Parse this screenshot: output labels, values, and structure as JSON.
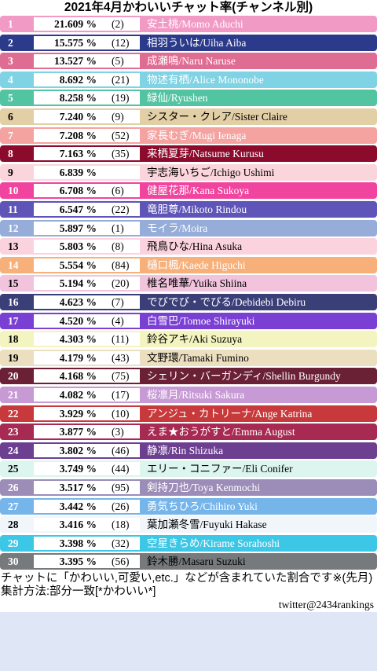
{
  "title": "2021年4月かわいいチャット率(チャンネル別)",
  "chart_data": {
    "type": "table",
    "title": "2021年4月かわいいチャット率(チャンネル別)",
    "columns": [
      "rank",
      "percent",
      "count",
      "channel"
    ],
    "rows": [
      {
        "rank": "1",
        "pct": "21.609 %",
        "count": "(2)",
        "name": "安土桃/Momo Aduchi",
        "bg": "#f29ac6",
        "fg": "#ffffff",
        "nameColor": "#ffffff"
      },
      {
        "rank": "2",
        "pct": "15.575 %",
        "count": "(12)",
        "name": "相羽ういは/Uiha Aiba",
        "bg": "#2b3a8a",
        "fg": "#ffffff",
        "nameColor": "#ffffff"
      },
      {
        "rank": "3",
        "pct": "13.527 %",
        "count": "(5)",
        "name": "成瀬鳴/Naru Naruse",
        "bg": "#df6d93",
        "fg": "#ffffff",
        "nameColor": "#ffffff"
      },
      {
        "rank": "4",
        "pct": "8.692 %",
        "count": "(21)",
        "name": "物述有栖/Alice Mononobe",
        "bg": "#7fd3e4",
        "fg": "#ffffff",
        "nameColor": "#ffffff"
      },
      {
        "rank": "5",
        "pct": "8.258 %",
        "count": "(19)",
        "name": "緑仙/Ryushen",
        "bg": "#52c4a1",
        "fg": "#ffffff",
        "nameColor": "#ffffff"
      },
      {
        "rank": "6",
        "pct": "7.240 %",
        "count": "(9)",
        "name": "シスター・クレア/Sister Claire",
        "bg": "#e3cfa6",
        "fg": "#000000",
        "nameColor": "#000000"
      },
      {
        "rank": "7",
        "pct": "7.208 %",
        "count": "(52)",
        "name": "家長むぎ/Mugi Ienaga",
        "bg": "#f4a3a1",
        "fg": "#ffffff",
        "nameColor": "#ffffff"
      },
      {
        "rank": "8",
        "pct": "7.163 %",
        "count": "(35)",
        "name": "来栖夏芽/Natsume Kurusu",
        "bg": "#8c0b2c",
        "fg": "#ffffff",
        "nameColor": "#ffffff"
      },
      {
        "rank": "9",
        "pct": "6.839 %",
        "count": "",
        "name": "宇志海いちご/Ichigo Ushimi",
        "bg": "#fbd5dc",
        "fg": "#000000",
        "nameColor": "#000000"
      },
      {
        "rank": "10",
        "pct": "6.708 %",
        "count": "(6)",
        "name": "健屋花那/Kana Sukoya",
        "bg": "#f1449e",
        "fg": "#ffffff",
        "nameColor": "#ffffff"
      },
      {
        "rank": "11",
        "pct": "6.547 %",
        "count": "(22)",
        "name": "竜胆尊/Mikoto Rindou",
        "bg": "#5f54b8",
        "fg": "#ffffff",
        "nameColor": "#ffffff"
      },
      {
        "rank": "12",
        "pct": "5.897 %",
        "count": "(1)",
        "name": "モイラ/Moira",
        "bg": "#96acd9",
        "fg": "#ffffff",
        "nameColor": "#ffffff"
      },
      {
        "rank": "13",
        "pct": "5.803 %",
        "count": "(8)",
        "name": "飛鳥ひな/Hina Asuka",
        "bg": "#fbd3de",
        "fg": "#000000",
        "nameColor": "#000000"
      },
      {
        "rank": "14",
        "pct": "5.554 %",
        "count": "(84)",
        "name": "樋口楓/Kaede Higuchi",
        "bg": "#f7b07a",
        "fg": "#ffffff",
        "nameColor": "#ffffff"
      },
      {
        "rank": "15",
        "pct": "5.194 %",
        "count": "(20)",
        "name": "椎名唯華/Yuika Shiina",
        "bg": "#f1c3dd",
        "fg": "#000000",
        "nameColor": "#000000"
      },
      {
        "rank": "16",
        "pct": "4.623 %",
        "count": "(7)",
        "name": "でびでび・でびる/Debidebi Debiru",
        "bg": "#3b3f78",
        "fg": "#ffffff",
        "nameColor": "#ffffff"
      },
      {
        "rank": "17",
        "pct": "4.520 %",
        "count": "(4)",
        "name": "白雪巴/Tomoe Shirayuki",
        "bg": "#7a3fd3",
        "fg": "#ffffff",
        "nameColor": "#ffffff"
      },
      {
        "rank": "18",
        "pct": "4.303 %",
        "count": "(11)",
        "name": "鈴谷アキ/Aki Suzuya",
        "bg": "#f4f4c0",
        "fg": "#000000",
        "nameColor": "#000000"
      },
      {
        "rank": "19",
        "pct": "4.179 %",
        "count": "(43)",
        "name": "文野環/Tamaki Fumino",
        "bg": "#ecdfc0",
        "fg": "#000000",
        "nameColor": "#000000"
      },
      {
        "rank": "20",
        "pct": "4.168 %",
        "count": "(75)",
        "name": "シェリン・バーガンディ/Shellin Burgundy",
        "bg": "#6a2035",
        "fg": "#ffffff",
        "nameColor": "#ffffff"
      },
      {
        "rank": "21",
        "pct": "4.082 %",
        "count": "(17)",
        "name": "桜凛月/Ritsuki Sakura",
        "bg": "#c79ad6",
        "fg": "#ffffff",
        "nameColor": "#ffffff"
      },
      {
        "rank": "22",
        "pct": "3.929 %",
        "count": "(10)",
        "name": "アンジュ・カトリーナ/Ange Katrina",
        "bg": "#c8393b",
        "fg": "#ffffff",
        "nameColor": "#ffffff"
      },
      {
        "rank": "23",
        "pct": "3.877 %",
        "count": "(3)",
        "name": "えま★おうがすと/Emma August",
        "bg": "#a72a52",
        "fg": "#ffffff",
        "nameColor": "#ffffff"
      },
      {
        "rank": "24",
        "pct": "3.802 %",
        "count": "(46)",
        "name": "静凛/Rin Shizuka",
        "bg": "#6c3f91",
        "fg": "#ffffff",
        "nameColor": "#ffffff"
      },
      {
        "rank": "25",
        "pct": "3.749 %",
        "count": "(44)",
        "name": "エリー・コニファー/Eli Conifer",
        "bg": "#dcf5ef",
        "fg": "#000000",
        "nameColor": "#000000"
      },
      {
        "rank": "26",
        "pct": "3.517 %",
        "count": "(95)",
        "name": "剣持刀也/Toya Kenmochi",
        "bg": "#9c8db8",
        "fg": "#ffffff",
        "nameColor": "#ffffff"
      },
      {
        "rank": "27",
        "pct": "3.442 %",
        "count": "(26)",
        "name": "勇気ちひろ/Chihiro Yuki",
        "bg": "#76b5ea",
        "fg": "#ffffff",
        "nameColor": "#ffffff"
      },
      {
        "rank": "28",
        "pct": "3.416 %",
        "count": "(18)",
        "name": "葉加瀬冬雪/Fuyuki Hakase",
        "bg": "#f1f6fb",
        "fg": "#000000",
        "nameColor": "#000000"
      },
      {
        "rank": "29",
        "pct": "3.398 %",
        "count": "(32)",
        "name": "空星きらめ/Kirame Sorahoshi",
        "bg": "#3dc7e6",
        "fg": "#ffffff",
        "nameColor": "#ffffff"
      },
      {
        "rank": "30",
        "pct": "3.395 %",
        "count": "(56)",
        "name": "鈴木勝/Masaru Suzuki",
        "bg": "#777a7d",
        "fg": "#ffffff",
        "nameColor": "#000000"
      }
    ]
  },
  "notes": {
    "line1": "チャットに「かわいい,可愛い,etc.」などが含まれていた割合です※(先月)",
    "line2": "集計方法:部分一致[*かわいい*]",
    "credit": "twitter@2434rankings"
  }
}
